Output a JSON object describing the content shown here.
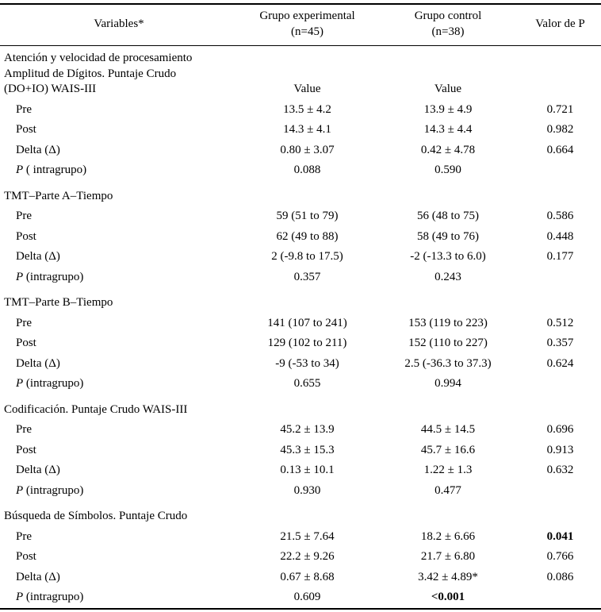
{
  "table": {
    "header": {
      "variables": "Variables*",
      "experimental_line1": "Grupo experimental",
      "experimental_line2": "(n=45)",
      "control_line1": "Grupo control",
      "control_line2": "(n=38)",
      "p_value": "Valor de P"
    },
    "rows": [
      {
        "kind": "section-block",
        "lines": [
          "Atención y velocidad de procesamiento",
          "Amplitud de Dígitos. Puntaje Crudo",
          "(DO+IO) WAIS-III"
        ],
        "exp": "Value",
        "ctrl": "Value",
        "p": ""
      },
      {
        "kind": "data",
        "label": "Pre",
        "exp": "13.5 ± 4.2",
        "ctrl": "13.9 ± 4.9",
        "p": "0.721"
      },
      {
        "kind": "data",
        "label": "Post",
        "exp": "14.3 ± 4.1",
        "ctrl": "14.3 ± 4.4",
        "p": "0.982"
      },
      {
        "kind": "data",
        "label": "Delta (Δ)",
        "exp": "0.80 ± 3.07",
        "ctrl": "0.42 ± 4.78",
        "p": "0.664"
      },
      {
        "kind": "data",
        "label_italic": "P",
        "label_rest": " ( intragrupo)",
        "exp": "0.088",
        "ctrl": "0.590",
        "p": ""
      },
      {
        "kind": "section",
        "label": "TMT–Parte A–Tiempo",
        "exp": "",
        "ctrl": "",
        "p": ""
      },
      {
        "kind": "data",
        "label": "Pre",
        "exp": "59 (51 to 79)",
        "ctrl": "56 (48 to 75)",
        "p": "0.586"
      },
      {
        "kind": "data",
        "label": "Post",
        "exp": "62 (49 to 88)",
        "ctrl": "58 (49 to 76)",
        "p": "0.448"
      },
      {
        "kind": "data",
        "label": "Delta (Δ)",
        "exp": "2 (-9.8 to 17.5)",
        "ctrl": "-2 (-13.3 to 6.0)",
        "p": "0.177"
      },
      {
        "kind": "data",
        "label_italic": "P",
        "label_rest": " (intragrupo)",
        "exp": "0.357",
        "ctrl": "0.243",
        "p": ""
      },
      {
        "kind": "section",
        "label": "TMT–Parte B–Tiempo",
        "exp": "",
        "ctrl": "",
        "p": ""
      },
      {
        "kind": "data",
        "label": "Pre",
        "exp": "141 (107 to 241)",
        "ctrl": "153 (119 to 223)",
        "p": "0.512"
      },
      {
        "kind": "data",
        "label": "Post",
        "exp": "129 (102 to 211)",
        "ctrl": "152 (110 to 227)",
        "p": "0.357"
      },
      {
        "kind": "data",
        "label": "Delta (Δ)",
        "exp": "-9 (-53 to 34)",
        "ctrl": "2.5 (-36.3 to 37.3)",
        "p": "0.624"
      },
      {
        "kind": "data",
        "label_italic": "P",
        "label_rest": " (intragrupo)",
        "exp": "0.655",
        "ctrl": "0.994",
        "p": ""
      },
      {
        "kind": "section",
        "label": "Codificación. Puntaje Crudo WAIS-III",
        "exp": "",
        "ctrl": "",
        "p": ""
      },
      {
        "kind": "data",
        "label": "Pre",
        "exp": "45.2 ± 13.9",
        "ctrl": "44.5 ± 14.5",
        "p": "0.696"
      },
      {
        "kind": "data",
        "label": "Post",
        "exp": "45.3 ± 15.3",
        "ctrl": "45.7 ± 16.6",
        "p": "0.913"
      },
      {
        "kind": "data",
        "label": "Delta (Δ)",
        "exp": "0.13 ± 10.1",
        "ctrl": "1.22 ± 1.3",
        "p": "0.632"
      },
      {
        "kind": "data",
        "label_italic": "P",
        "label_rest": " (intragrupo)",
        "exp": "0.930",
        "ctrl": "0.477",
        "p": ""
      },
      {
        "kind": "section",
        "label": "Búsqueda de Símbolos. Puntaje Crudo",
        "exp": "",
        "ctrl": "",
        "p": ""
      },
      {
        "kind": "data",
        "label": "Pre",
        "exp": "21.5 ± 7.64",
        "ctrl": "18.2 ± 6.66",
        "p": "0.041",
        "p_bold": true
      },
      {
        "kind": "data",
        "label": "Post",
        "exp": "22.2 ± 9.26",
        "ctrl": "21.7 ± 6.80",
        "p": "0.766"
      },
      {
        "kind": "data",
        "label": "Delta (Δ)",
        "exp": "0.67 ± 8.68",
        "ctrl": "3.42 ± 4.89*",
        "p": "0.086"
      },
      {
        "kind": "data",
        "label_italic": "P",
        "label_rest": " (intragrupo)",
        "exp": "0.609",
        "ctrl": "<0.001",
        "ctrl_bold": true,
        "p": ""
      }
    ]
  }
}
